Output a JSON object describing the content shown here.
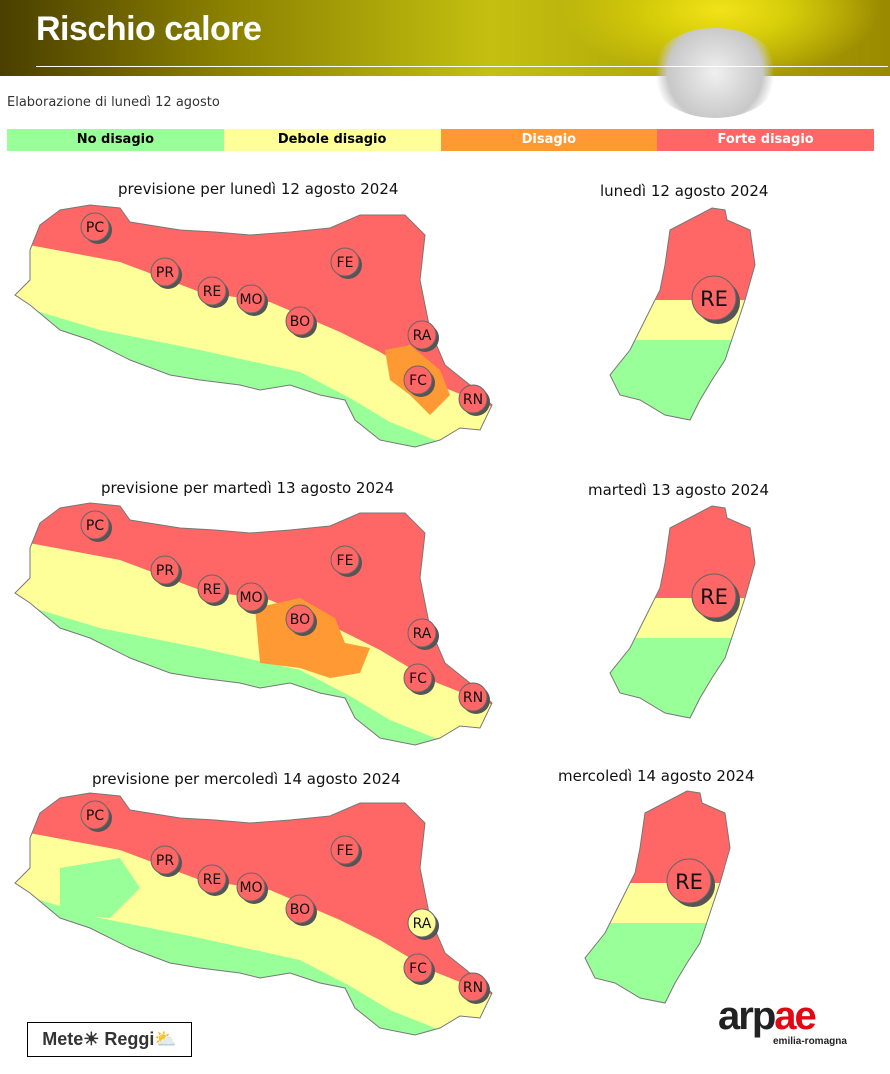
{
  "header": {
    "title": "Rischio calore"
  },
  "subtitle": "Elaborazione di lunedì 12 agosto",
  "legend": [
    {
      "label": "No disagio",
      "color": "#99ff99",
      "text": "#000"
    },
    {
      "label": "Debole disagio",
      "color": "#ffff99",
      "text": "#000"
    },
    {
      "label": "Disagio",
      "color": "#ff9933",
      "text": "#fff"
    },
    {
      "label": "Forte disagio",
      "color": "#ff6666",
      "text": "#fff"
    }
  ],
  "maps": [
    {
      "caption": "previsione per lunedì 12 agosto 2024",
      "re_caption": "lunedì 12 agosto 2024",
      "zones": {
        "north": 3,
        "middle": 1,
        "south": 0,
        "special": 2,
        "special2": 1
      },
      "provinces": {
        "PC": 3,
        "PR": 3,
        "RE": 3,
        "MO": 3,
        "BO": 3,
        "FE": 3,
        "RA": 3,
        "FC": 3,
        "RN": 3
      }
    },
    {
      "caption": "previsione per martedì 13 agosto 2024",
      "re_caption": "martedì 13 agosto 2024",
      "zones": {
        "north": 3,
        "middle": 1,
        "south": 0,
        "special": 2,
        "special2": 3
      },
      "provinces": {
        "PC": 3,
        "PR": 3,
        "RE": 3,
        "MO": 3,
        "BO": 3,
        "FE": 3,
        "RA": 3,
        "FC": 3,
        "RN": 3
      }
    },
    {
      "caption": "previsione per mercoledì 14 agosto 2024",
      "re_caption": "mercoledì 14 agosto 2024",
      "zones": {
        "north": 3,
        "middle": 1,
        "south": 0,
        "special": 1,
        "special2": 1
      },
      "provinces": {
        "PC": 3,
        "PR": 3,
        "RE": 3,
        "MO": 3,
        "BO": 3,
        "FE": 3,
        "RA": 1,
        "FC": 3,
        "RN": 3
      }
    }
  ],
  "logos": {
    "meteo": "Mete☀ Reggi⛅",
    "arpae_1": "arp",
    "arpae_2": "ae",
    "arpae_sub": "emilia-romagna"
  }
}
